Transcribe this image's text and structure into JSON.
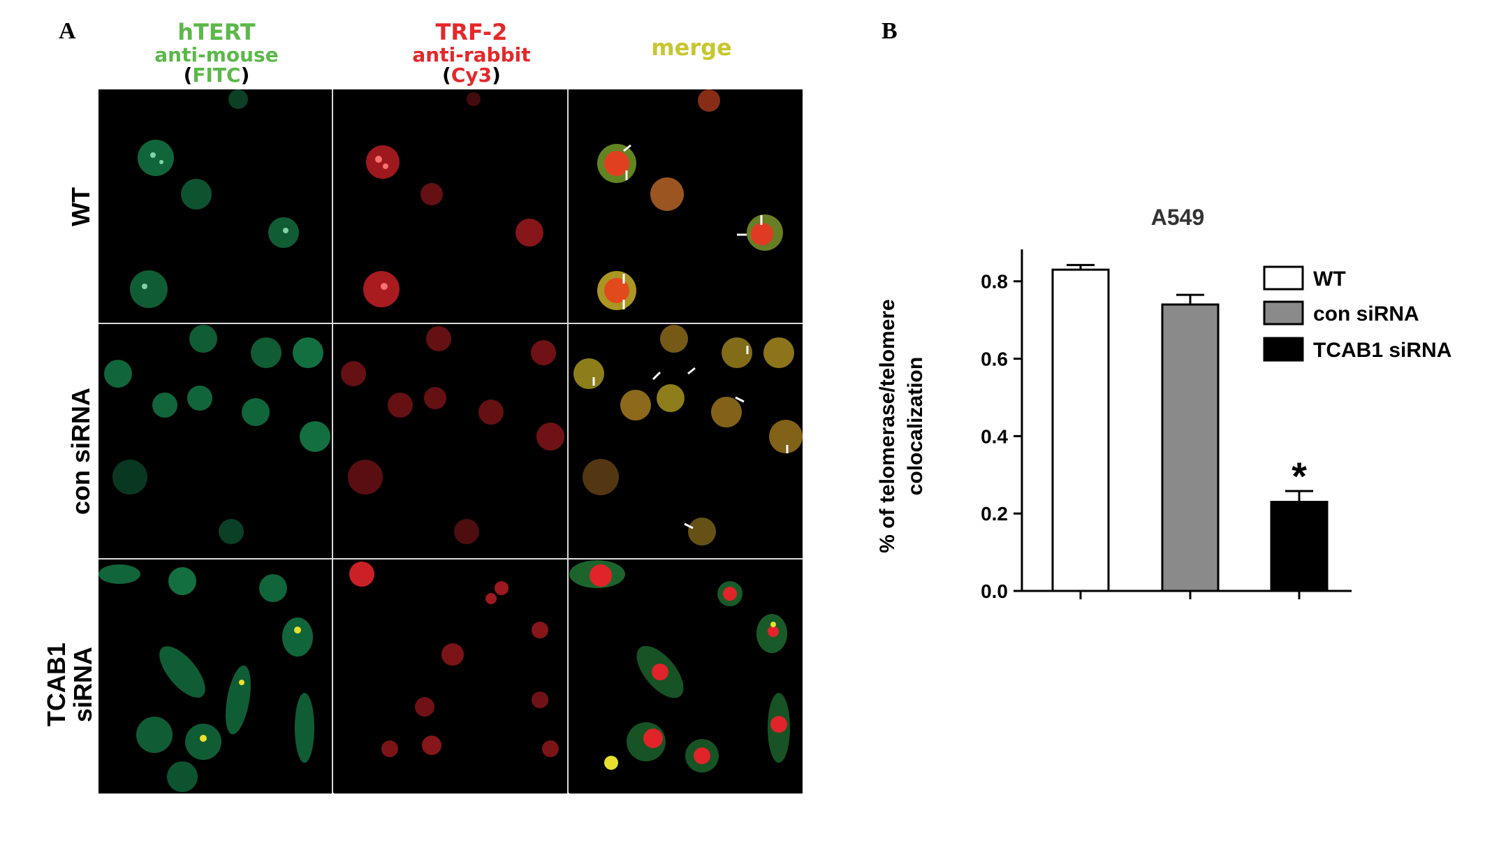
{
  "panel_a_letter": "A",
  "panel_b_letter": "B",
  "column_headers": [
    {
      "line1": "hTERT",
      "line2": "anti-mouse",
      "line3_open": "(",
      "line3_stain": "FITC",
      "line3_close": ")",
      "color": "#5cb84a"
    },
    {
      "line1": "TRF-2",
      "line2": "anti-rabbit",
      "line3_open": "(",
      "line3_stain": "Cy3",
      "line3_close": ")",
      "color": "#e5282a"
    },
    {
      "line1": "merge",
      "color": "#c8c62c"
    }
  ],
  "row_labels": {
    "wt": "WT",
    "con": "con siRNA",
    "tcab1_line1": "TCAB1",
    "tcab1_line2": "siRNA"
  },
  "colors": {
    "fitc": "#1fb86a",
    "cy3": "#e0242a",
    "merge_yellow": "#d9c229",
    "bar_wt": "#ffffff",
    "bar_con": "#8a8a8a",
    "bar_tcab1": "#000000"
  },
  "chart_data": {
    "type": "bar",
    "title": "A549",
    "ylabel_line1": "% of telomerase/telomere",
    "ylabel_line2": "colocalization",
    "xlabel": "",
    "categories": [
      "WT",
      "con siRNA",
      "TCAB1 siRNA"
    ],
    "values": [
      0.83,
      0.74,
      0.23
    ],
    "errors": [
      0.012,
      0.025,
      0.028
    ],
    "significance": [
      "",
      "",
      "*"
    ],
    "ylim": [
      0.0,
      0.85
    ],
    "yticks": [
      "0.0",
      "0.2",
      "0.4",
      "0.6",
      "0.8"
    ],
    "legend": [
      "WT",
      "con siRNA",
      "TCAB1 siRNA"
    ],
    "legend_position": "top-right",
    "grid": false
  }
}
